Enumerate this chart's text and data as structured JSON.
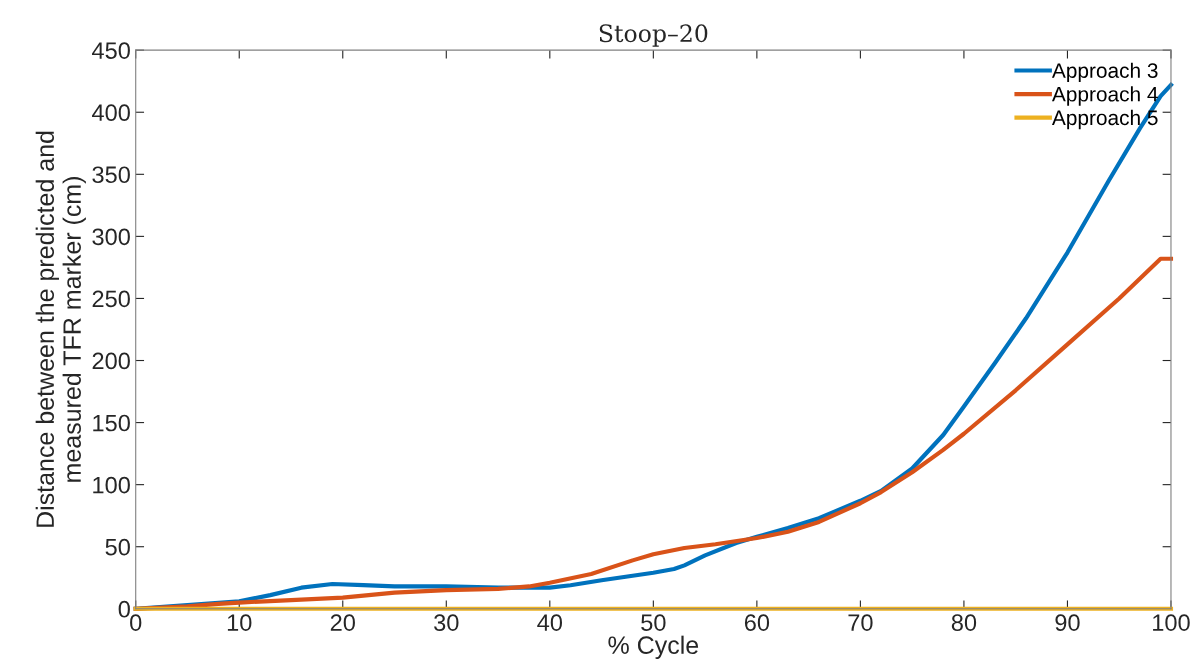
{
  "chart_data": {
    "type": "line",
    "title": "Stoop–20",
    "xlabel": "% Cycle",
    "ylabel": "Distance between the predicted and\nmeasured TFR marker (cm)",
    "xlim": [
      0,
      100
    ],
    "xticks": [
      0,
      10,
      20,
      30,
      40,
      50,
      60,
      70,
      80,
      90,
      100
    ],
    "ylim": [
      0,
      450
    ],
    "yticks": [
      0,
      50,
      100,
      150,
      200,
      250,
      300,
      350,
      400,
      450
    ],
    "grid": false,
    "legend": "top right",
    "marker": "none",
    "line_style": "solid",
    "series": [
      {
        "name": "Approach 3",
        "color": "#0072bd",
        "x": [
          0,
          10,
          13,
          16,
          19,
          22,
          25,
          30,
          35,
          38,
          40,
          42,
          45,
          50,
          52,
          53,
          55,
          58,
          60,
          63,
          66,
          70,
          72,
          75,
          78,
          80,
          83,
          86,
          90,
          94,
          97,
          99,
          100
        ],
        "values": [
          0,
          6,
          11,
          17,
          20,
          19,
          18,
          18,
          17,
          17,
          17,
          19,
          23,
          29,
          32,
          35,
          43,
          53,
          58,
          65,
          73,
          87,
          95,
          113,
          140,
          163,
          198,
          234,
          287,
          345,
          387,
          413,
          422
        ]
      },
      {
        "name": "Approach 4",
        "color": "#d95319",
        "x": [
          0,
          5,
          8,
          10,
          15,
          20,
          25,
          30,
          35,
          38,
          40,
          44,
          48,
          50,
          53,
          56,
          60,
          63,
          66,
          70,
          72,
          75,
          78,
          80,
          85,
          90,
          95,
          99,
          100
        ],
        "values": [
          0,
          2,
          4,
          5,
          7,
          9,
          13,
          15,
          16,
          18,
          21,
          28,
          39,
          44,
          49,
          52,
          57,
          62,
          70,
          85,
          94,
          110,
          128,
          141,
          176,
          213,
          250,
          282,
          282
        ]
      },
      {
        "name": "Approach 5",
        "color": "#edb120",
        "x": [
          0,
          100
        ],
        "values": [
          0,
          0
        ]
      }
    ]
  }
}
